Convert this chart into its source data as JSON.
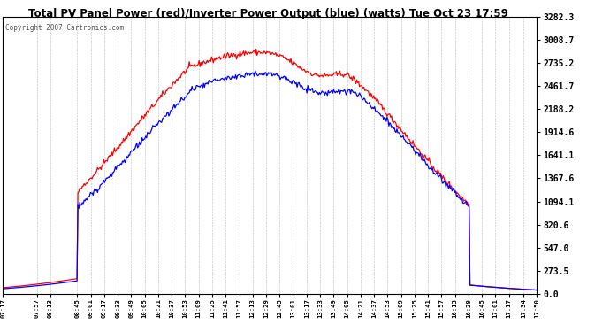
{
  "title": "Total PV Panel Power (red)/Inverter Power Output (blue) (watts) Tue Oct 23 17:59",
  "copyright": "Copyright 2007 Cartronics.com",
  "y_ticks": [
    0.0,
    273.5,
    547.0,
    820.6,
    1094.1,
    1367.6,
    1641.1,
    1914.6,
    2188.2,
    2461.7,
    2735.2,
    3008.7,
    3282.3
  ],
  "y_max": 3282.3,
  "y_min": 0.0,
  "x_labels": [
    "07:17",
    "07:57",
    "08:13",
    "08:45",
    "09:01",
    "09:17",
    "09:33",
    "09:49",
    "10:05",
    "10:21",
    "10:37",
    "10:53",
    "11:09",
    "11:25",
    "11:41",
    "11:57",
    "12:13",
    "12:29",
    "12:45",
    "13:01",
    "13:17",
    "13:33",
    "13:49",
    "14:05",
    "14:21",
    "14:37",
    "14:53",
    "15:09",
    "15:25",
    "15:41",
    "15:57",
    "16:13",
    "16:29",
    "16:45",
    "17:01",
    "17:17",
    "17:34",
    "17:50"
  ],
  "bg_color": "#ffffff",
  "plot_bg_color": "#ffffff",
  "grid_color": "#aaaaaa",
  "red_color": "#ff0000",
  "blue_color": "#0000ff",
  "title_color": "#000000",
  "copyright_color": "#555555"
}
